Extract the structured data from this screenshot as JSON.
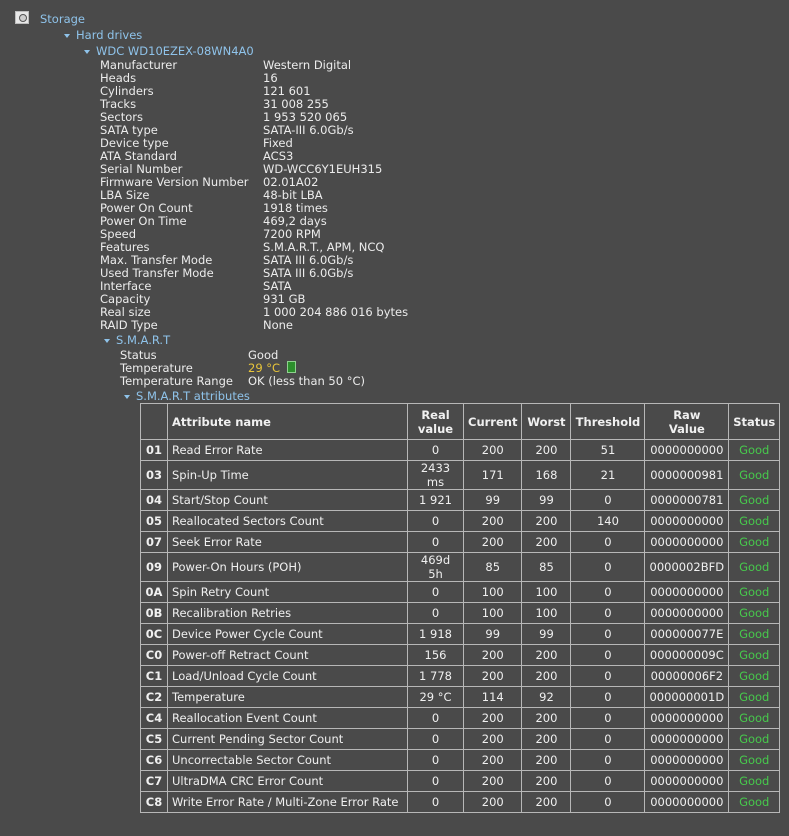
{
  "tree": {
    "storage": "Storage",
    "hard_drives": "Hard drives",
    "drive": "WDC WD10EZEX-08WN4A0"
  },
  "properties": [
    {
      "label": "Manufacturer",
      "value": "Western Digital"
    },
    {
      "label": "Heads",
      "value": "16"
    },
    {
      "label": "Cylinders",
      "value": "121 601"
    },
    {
      "label": "Tracks",
      "value": "31 008 255"
    },
    {
      "label": "Sectors",
      "value": "1 953 520 065"
    },
    {
      "label": "SATA type",
      "value": "SATA-III 6.0Gb/s"
    },
    {
      "label": "Device type",
      "value": "Fixed"
    },
    {
      "label": "ATA Standard",
      "value": "ACS3"
    },
    {
      "label": "Serial Number",
      "value": "WD-WCC6Y1EUH315"
    },
    {
      "label": "Firmware Version Number",
      "value": "02.01A02"
    },
    {
      "label": "LBA Size",
      "value": "48-bit LBA"
    },
    {
      "label": "Power On Count",
      "value": "1918 times"
    },
    {
      "label": "Power On Time",
      "value": "469,2 days"
    },
    {
      "label": "Speed",
      "value": "7200 RPM"
    },
    {
      "label": "Features",
      "value": "S.M.A.R.T., APM, NCQ"
    },
    {
      "label": "Max. Transfer Mode",
      "value": "SATA III 6.0Gb/s"
    },
    {
      "label": "Used Transfer Mode",
      "value": "SATA III 6.0Gb/s"
    },
    {
      "label": "Interface",
      "value": "SATA"
    },
    {
      "label": "Capacity",
      "value": "931 GB"
    },
    {
      "label": "Real size",
      "value": "1 000 204 886 016 bytes"
    },
    {
      "label": "RAID Type",
      "value": "None"
    }
  ],
  "smart": {
    "title": "S.M.A.R.T",
    "status_label": "Status",
    "status_value": "Good",
    "temperature_label": "Temperature",
    "temperature_value": "29 °C",
    "temperature_range_label": "Temperature Range",
    "temperature_range_value": "OK (less than 50 °C)",
    "attributes_title": "S.M.A.R.T attributes",
    "columns": {
      "name": "Attribute name",
      "real_line1": "Real",
      "real_line2": "value",
      "current": "Current",
      "worst": "Worst",
      "threshold": "Threshold",
      "raw_line1": "Raw",
      "raw_line2": "Value",
      "status": "Status"
    },
    "rows": [
      {
        "id": "01",
        "name": "Read Error Rate",
        "real": "0",
        "current": "200",
        "worst": "200",
        "threshold": "51",
        "raw": "0000000000",
        "status": "Good"
      },
      {
        "id": "03",
        "name": "Spin-Up Time",
        "real": "2433 ms",
        "current": "171",
        "worst": "168",
        "threshold": "21",
        "raw": "0000000981",
        "status": "Good"
      },
      {
        "id": "04",
        "name": "Start/Stop Count",
        "real": "1 921",
        "current": "99",
        "worst": "99",
        "threshold": "0",
        "raw": "0000000781",
        "status": "Good"
      },
      {
        "id": "05",
        "name": "Reallocated Sectors Count",
        "real": "0",
        "current": "200",
        "worst": "200",
        "threshold": "140",
        "raw": "0000000000",
        "status": "Good"
      },
      {
        "id": "07",
        "name": "Seek Error Rate",
        "real": "0",
        "current": "200",
        "worst": "200",
        "threshold": "0",
        "raw": "0000000000",
        "status": "Good"
      },
      {
        "id": "09",
        "name": "Power-On Hours (POH)",
        "real": "469d 5h",
        "current": "85",
        "worst": "85",
        "threshold": "0",
        "raw": "0000002BFD",
        "status": "Good"
      },
      {
        "id": "0A",
        "name": "Spin Retry Count",
        "real": "0",
        "current": "100",
        "worst": "100",
        "threshold": "0",
        "raw": "0000000000",
        "status": "Good"
      },
      {
        "id": "0B",
        "name": "Recalibration Retries",
        "real": "0",
        "current": "100",
        "worst": "100",
        "threshold": "0",
        "raw": "0000000000",
        "status": "Good"
      },
      {
        "id": "0C",
        "name": "Device Power Cycle Count",
        "real": "1 918",
        "current": "99",
        "worst": "99",
        "threshold": "0",
        "raw": "000000077E",
        "status": "Good"
      },
      {
        "id": "C0",
        "name": "Power-off Retract Count",
        "real": "156",
        "current": "200",
        "worst": "200",
        "threshold": "0",
        "raw": "000000009C",
        "status": "Good"
      },
      {
        "id": "C1",
        "name": "Load/Unload Cycle Count",
        "real": "1 778",
        "current": "200",
        "worst": "200",
        "threshold": "0",
        "raw": "00000006F2",
        "status": "Good"
      },
      {
        "id": "C2",
        "name": "Temperature",
        "real": "29 °C",
        "current": "114",
        "worst": "92",
        "threshold": "0",
        "raw": "000000001D",
        "status": "Good"
      },
      {
        "id": "C4",
        "name": "Reallocation Event Count",
        "real": "0",
        "current": "200",
        "worst": "200",
        "threshold": "0",
        "raw": "0000000000",
        "status": "Good"
      },
      {
        "id": "C5",
        "name": "Current Pending Sector Count",
        "real": "0",
        "current": "200",
        "worst": "200",
        "threshold": "0",
        "raw": "0000000000",
        "status": "Good"
      },
      {
        "id": "C6",
        "name": "Uncorrectable Sector Count",
        "real": "0",
        "current": "200",
        "worst": "200",
        "threshold": "0",
        "raw": "0000000000",
        "status": "Good"
      },
      {
        "id": "C7",
        "name": "UltraDMA CRC Error Count",
        "real": "0",
        "current": "200",
        "worst": "200",
        "threshold": "0",
        "raw": "0000000000",
        "status": "Good"
      },
      {
        "id": "C8",
        "name": "Write Error Rate / Multi-Zone Error Rate",
        "real": "0",
        "current": "200",
        "worst": "200",
        "threshold": "0",
        "raw": "0000000000",
        "status": "Good"
      }
    ]
  },
  "colors": {
    "background": "#4a4a4a",
    "text": "#ececec",
    "tree_link": "#8fc3ea",
    "temperature": "#e8c53a",
    "status_good": "#47c94c"
  }
}
